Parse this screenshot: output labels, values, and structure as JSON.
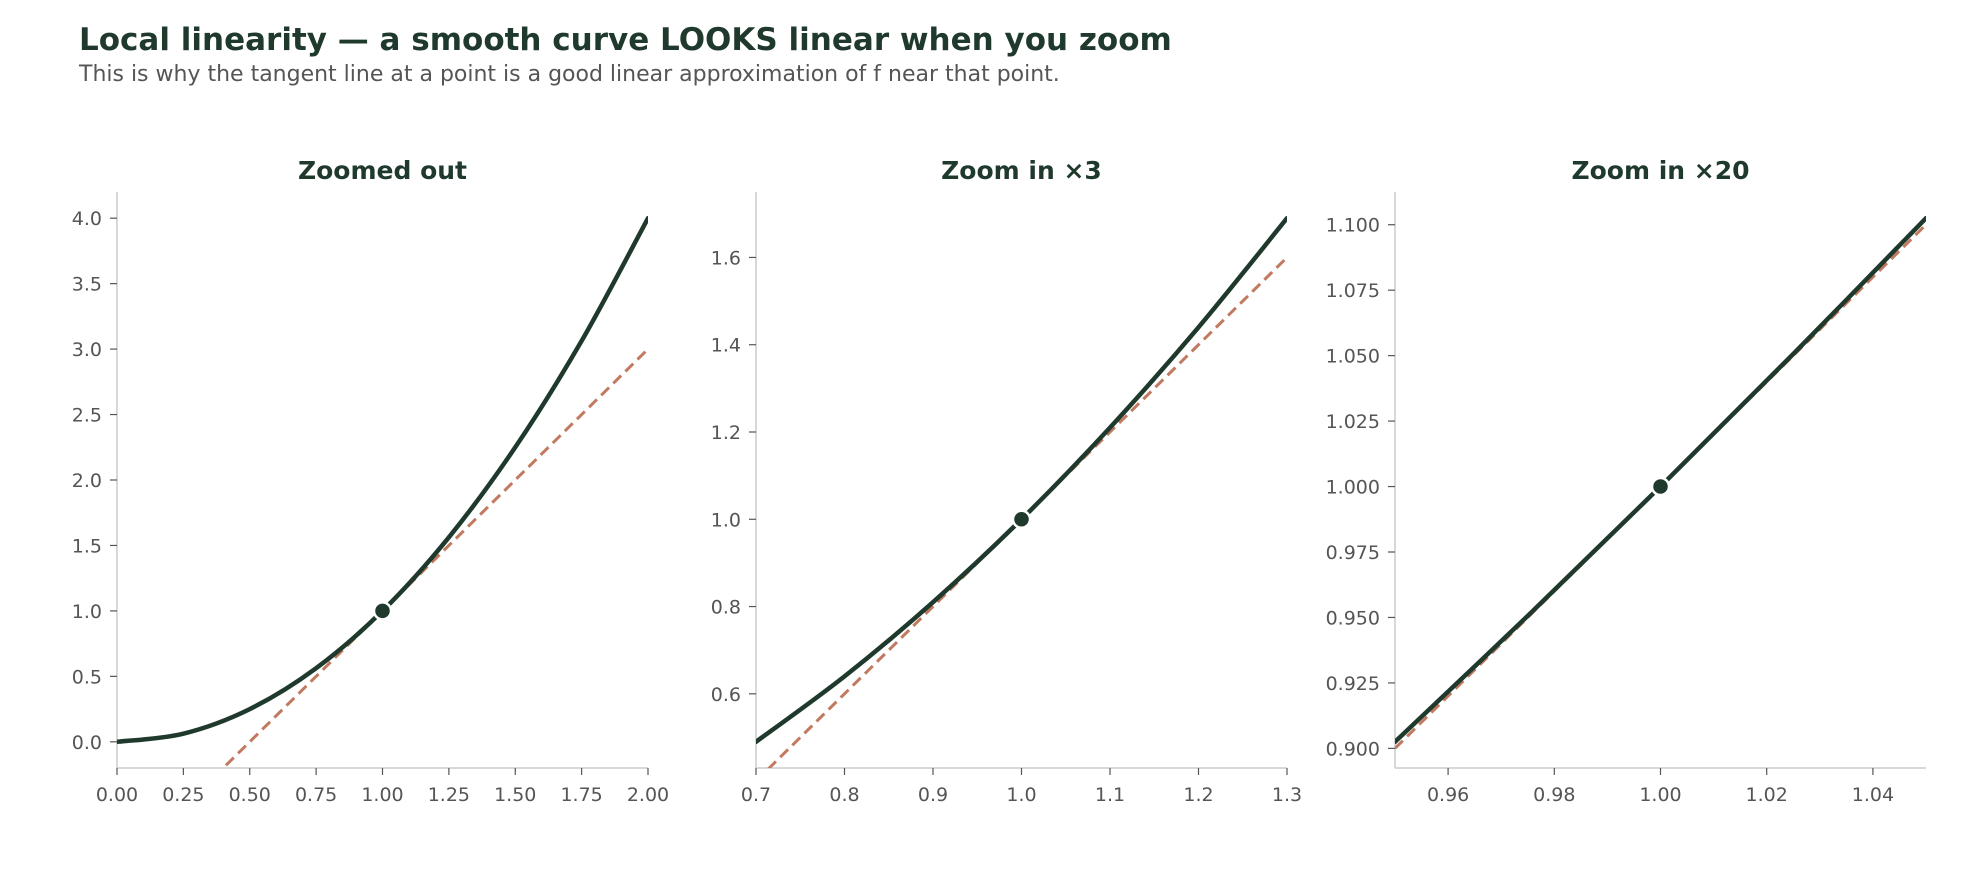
{
  "figure": {
    "title": "Local linearity — a smooth curve LOOKS linear when you zoom",
    "subtitle": "This is why the tangent line at a point is a good linear approximation of f near that point."
  },
  "colors": {
    "curve": "#1f3a2d",
    "tangent": "#c17a60",
    "point": "#1f3a2d",
    "axis": "#cccccc",
    "text": "#555555",
    "title": "#1f3a2d"
  },
  "chart_data": [
    {
      "type": "line",
      "title": "Zoomed out",
      "xlabel": "",
      "ylabel": "",
      "xlim": [
        0.0,
        2.0
      ],
      "ylim": [
        -0.2,
        4.2
      ],
      "xticks": [
        "0.00",
        "0.25",
        "0.50",
        "0.75",
        "1.00",
        "1.25",
        "1.50",
        "1.75",
        "2.00"
      ],
      "yticks": [
        "0.0",
        "0.5",
        "1.0",
        "1.5",
        "2.0",
        "2.5",
        "3.0",
        "3.5",
        "4.0"
      ],
      "series": [
        {
          "x": [
            0.0,
            0.25,
            0.5,
            0.75,
            1.0,
            1.25,
            1.5,
            1.75,
            2.0
          ],
          "y": [
            0.0,
            0.0625,
            0.25,
            0.5625,
            1.0,
            1.5625,
            2.25,
            3.0625,
            4.0
          ],
          "style": "solid"
        },
        {
          "x": [
            0.0,
            2.0
          ],
          "y": [
            -1.0,
            3.0
          ],
          "style": "dashed"
        }
      ],
      "point": {
        "x": 1.0,
        "y": 1.0
      },
      "grid": false,
      "legend": "none"
    },
    {
      "type": "line",
      "title": "Zoom in ×3",
      "xlabel": "",
      "ylabel": "",
      "xlim": [
        0.7,
        1.3
      ],
      "ylim": [
        0.43,
        1.75
      ],
      "xticks": [
        "0.7",
        "0.8",
        "0.9",
        "1.0",
        "1.1",
        "1.2",
        "1.3"
      ],
      "yticks": [
        "0.6",
        "0.8",
        "1.0",
        "1.2",
        "1.4",
        "1.6"
      ],
      "series": [
        {
          "x": [
            0.7,
            0.8,
            0.9,
            1.0,
            1.1,
            1.2,
            1.3
          ],
          "y": [
            0.49,
            0.64,
            0.81,
            1.0,
            1.21,
            1.44,
            1.69
          ],
          "style": "solid"
        },
        {
          "x": [
            0.7,
            1.3
          ],
          "y": [
            0.4,
            1.6
          ],
          "style": "dashed"
        }
      ],
      "point": {
        "x": 1.0,
        "y": 1.0
      },
      "grid": false,
      "legend": "none"
    },
    {
      "type": "line",
      "title": "Zoom in ×20",
      "xlabel": "",
      "ylabel": "",
      "xlim": [
        0.95,
        1.05
      ],
      "ylim": [
        0.8925,
        1.1125
      ],
      "xticks": [
        "0.96",
        "0.98",
        "1.00",
        "1.02",
        "1.04"
      ],
      "yticks": [
        "0.900",
        "0.925",
        "0.950",
        "0.975",
        "1.000",
        "1.025",
        "1.050",
        "1.075",
        "1.100"
      ],
      "series": [
        {
          "x": [
            0.95,
            0.975,
            1.0,
            1.025,
            1.05
          ],
          "y": [
            0.9025,
            0.950625,
            1.0,
            1.050625,
            1.1025
          ],
          "style": "solid"
        },
        {
          "x": [
            0.95,
            1.05
          ],
          "y": [
            0.9,
            1.1
          ],
          "style": "dashed"
        }
      ],
      "point": {
        "x": 1.0,
        "y": 1.0
      },
      "grid": false,
      "legend": "none"
    }
  ]
}
